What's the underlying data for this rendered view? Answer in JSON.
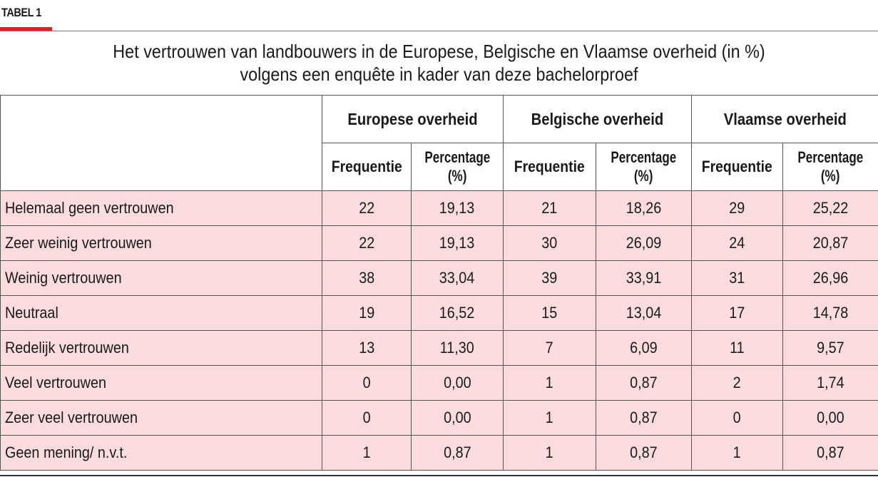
{
  "tag_label": "TABEL 1",
  "accent_color": "#d7262b",
  "row_fill_color": "#f9dcdb",
  "title": {
    "line1": "Het vertrouwen van landbouwers in de Europese, Belgische en Vlaamse overheid (in %)",
    "line2": "volgens een enquête in kader van deze bachelorproef"
  },
  "groups": [
    "Europese overheid",
    "Belgische overheid",
    "Vlaamse overheid"
  ],
  "subheaders": {
    "freq": "Frequentie",
    "pct_line1": "Percentage",
    "pct_line2": "(%)"
  },
  "rows": [
    {
      "label": "Helemaal geen vertrouwen",
      "values": [
        "22",
        "19,13",
        "21",
        "18,26",
        "29",
        "25,22"
      ]
    },
    {
      "label": "Zeer weinig vertrouwen",
      "values": [
        "22",
        "19,13",
        "30",
        "26,09",
        "24",
        "20,87"
      ]
    },
    {
      "label": "Weinig vertrouwen",
      "values": [
        "38",
        "33,04",
        "39",
        "33,91",
        "31",
        "26,96"
      ]
    },
    {
      "label": "Neutraal",
      "values": [
        "19",
        "16,52",
        "15",
        "13,04",
        "17",
        "14,78"
      ]
    },
    {
      "label": "Redelijk vertrouwen",
      "values": [
        "13",
        "11,30",
        "7",
        "6,09",
        "11",
        "9,57"
      ]
    },
    {
      "label": "Veel vertrouwen",
      "values": [
        "0",
        "0,00",
        "1",
        "0,87",
        "2",
        "1,74"
      ]
    },
    {
      "label": "Zeer veel vertrouwen",
      "values": [
        "0",
        "0,00",
        "1",
        "0,87",
        "0",
        "0,00"
      ]
    },
    {
      "label": "Geen mening/ n.v.t.",
      "values": [
        "1",
        "0,87",
        "1",
        "0,87",
        "1",
        "0,87"
      ]
    }
  ]
}
